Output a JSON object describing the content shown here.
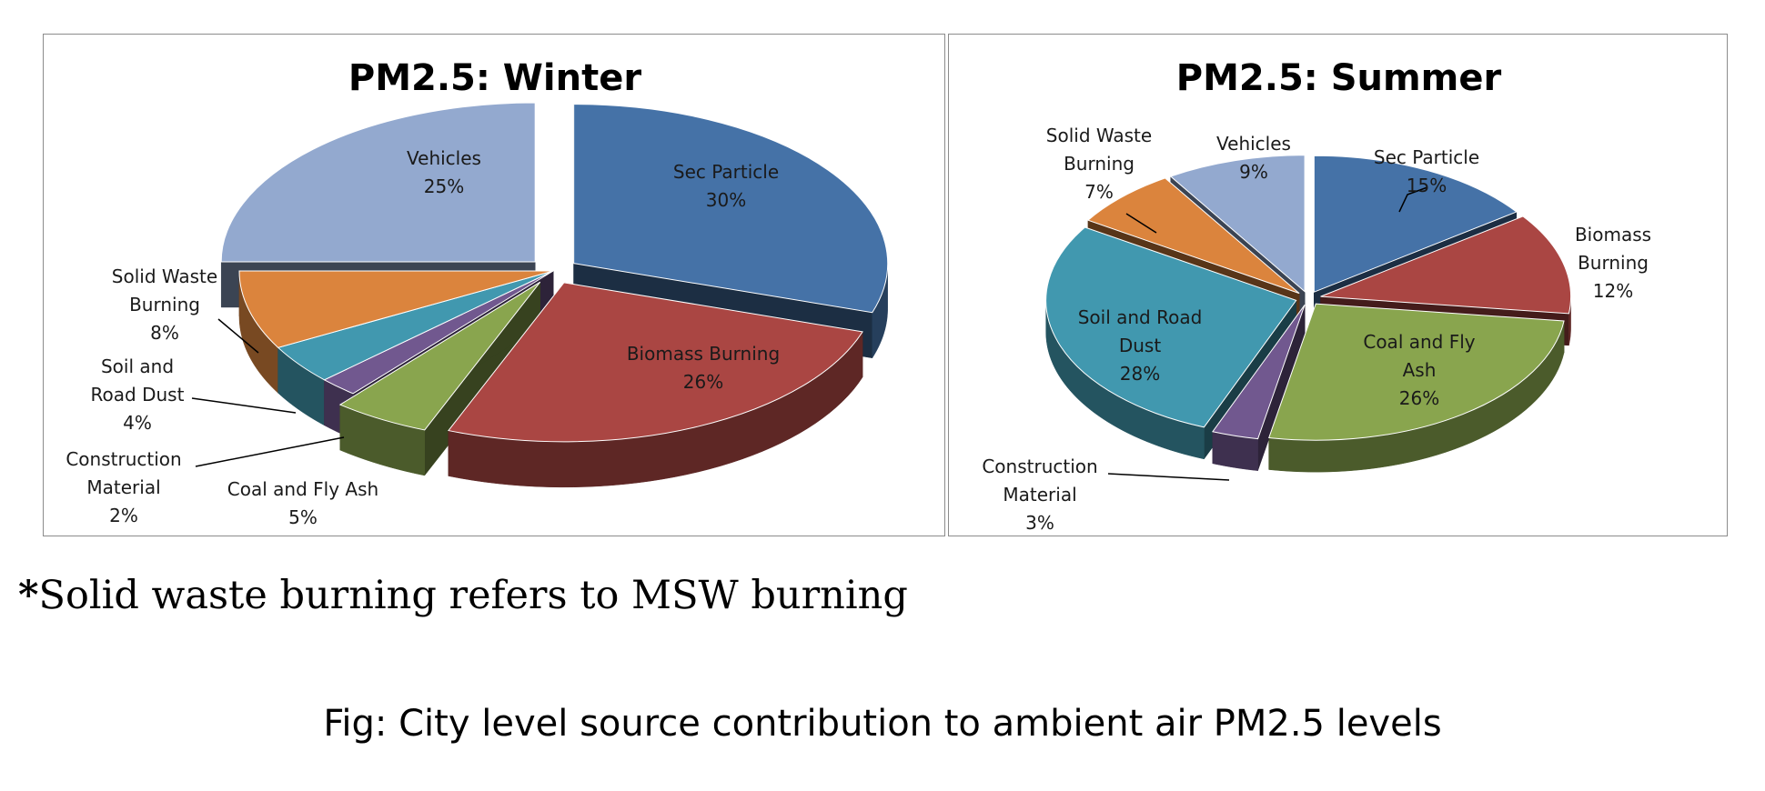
{
  "chart_data": [
    {
      "type": "pie",
      "title": "PM2.5: Winter",
      "categories": [
        "Sec Particle",
        "Biomass Burning",
        "Coal and Fly Ash",
        "Construction Material",
        "Soil and Road Dust",
        "Solid Waste Burning",
        "Vehicles"
      ],
      "values": [
        30,
        26,
        5,
        2,
        4,
        8,
        25
      ],
      "unit": "%",
      "colors": [
        "#4572a7",
        "#aa4643",
        "#89a54e",
        "#71588f",
        "#4198af",
        "#db843d",
        "#93a9cf"
      ],
      "exploded": [
        "Sec Particle",
        "Biomass Burning",
        "Coal and Fly Ash",
        "Vehicles"
      ],
      "legend": "none",
      "data_labels": [
        {
          "text": [
            "Sec Particle",
            "30%"
          ]
        },
        {
          "text": [
            "Biomass Burning",
            "26%"
          ]
        },
        {
          "text": [
            "Coal and Fly Ash",
            "5%"
          ]
        },
        {
          "text": [
            "Construction",
            "Material",
            "2%"
          ]
        },
        {
          "text": [
            "Soil and",
            "Road Dust",
            "4%"
          ]
        },
        {
          "text": [
            "Solid Waste",
            "Burning",
            "8%"
          ]
        },
        {
          "text": [
            "Vehicles",
            "25%"
          ]
        }
      ]
    },
    {
      "type": "pie",
      "title": "PM2.5: Summer",
      "categories": [
        "Sec Particle",
        "Biomass Burning",
        "Coal and Fly Ash",
        "Construction Material",
        "Soil and Road Dust",
        "Solid Waste Burning",
        "Vehicles"
      ],
      "values": [
        15,
        12,
        26,
        3,
        28,
        7,
        9
      ],
      "unit": "%",
      "colors": [
        "#4572a7",
        "#aa4643",
        "#89a54e",
        "#71588f",
        "#4198af",
        "#db843d",
        "#93a9cf"
      ],
      "exploded": [
        "Sec Particle",
        "Biomass Burning",
        "Coal and Fly Ash",
        "Construction Material",
        "Soil and Road Dust",
        "Solid Waste Burning",
        "Vehicles"
      ],
      "legend": "none",
      "data_labels": [
        {
          "text": [
            "Sec Particle",
            "15%"
          ]
        },
        {
          "text": [
            "Biomass",
            "Burning",
            "12%"
          ]
        },
        {
          "text": [
            "Coal and Fly",
            "Ash",
            "26%"
          ]
        },
        {
          "text": [
            "Construction",
            "Material",
            "3%"
          ]
        },
        {
          "text": [
            "Soil and Road",
            "Dust",
            "28%"
          ]
        },
        {
          "text": [
            "Solid Waste",
            "Burning",
            "7%"
          ]
        },
        {
          "text": [
            "Vehicles",
            "9%"
          ]
        }
      ]
    }
  ],
  "footnote": {
    "marker": "*",
    "text": "Solid waste burning refers to MSW burning"
  },
  "caption": "Fig: City level source contribution to ambient air PM2.5 levels"
}
